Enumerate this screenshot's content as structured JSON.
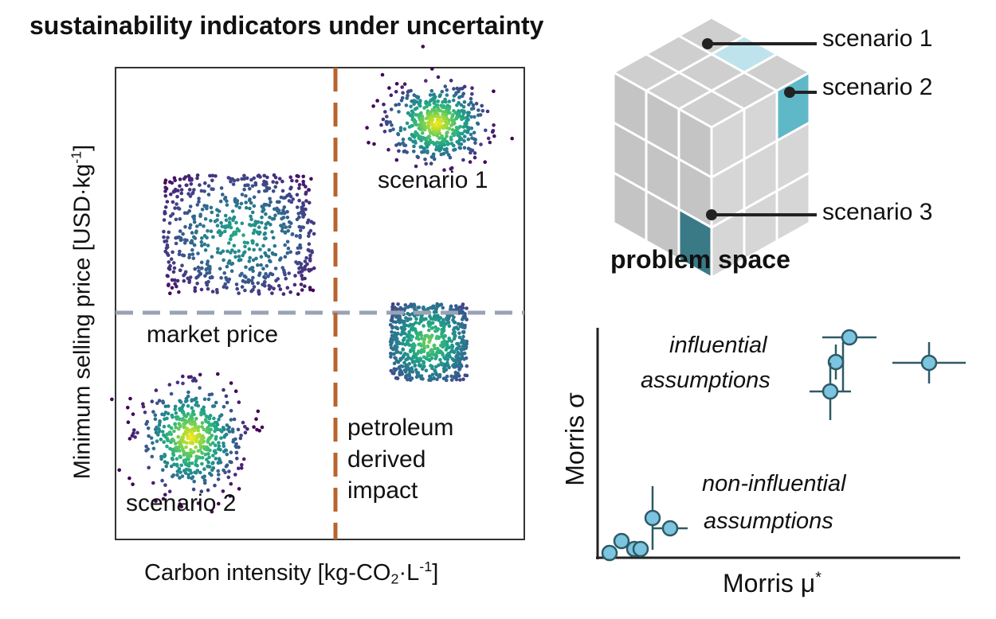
{
  "title": "sustainability indicators under uncertainty",
  "scatter_panel": {
    "xlabel_prefix": "Carbon intensity [kg-CO",
    "xlabel_sub": "2",
    "xlabel_mid": "·L",
    "xlabel_sup": "-1",
    "xlabel_suffix": "]",
    "ylabel_prefix": "Minimum selling price [USD·kg",
    "ylabel_sup": "-1",
    "ylabel_suffix": "]",
    "market_price_label": "market price",
    "petroleum_label_line1": "petroleum",
    "petroleum_label_line2": "derived",
    "petroleum_label_line3": "impact",
    "scenario1_label": "scenario 1",
    "scenario2_label": "scenario 2",
    "colors": {
      "frame": "#333333",
      "vertical_dashed": "#b8642e",
      "horizontal_dashed": "#9aa3b5"
    }
  },
  "cube": {
    "caption": "problem space",
    "scenario1_label": "scenario 1",
    "scenario2_label": "scenario 2",
    "scenario3_label": "scenario 3",
    "colors": {
      "face": "#cfcfcf",
      "scenario1": "#bfe3ec",
      "scenario2": "#5fb8c8",
      "scenario3": "#3a7a86"
    }
  },
  "morris": {
    "xlabel": "Morris μ",
    "xlabel_sup": "*",
    "ylabel": "Morris σ",
    "influential_line1": "influential",
    "influential_line2": "assumptions",
    "noninfluential_line1": "non-influential",
    "noninfluential_line2": "assumptions",
    "colors": {
      "marker": "#7cc4df",
      "stroke": "#2e5a66"
    }
  }
}
